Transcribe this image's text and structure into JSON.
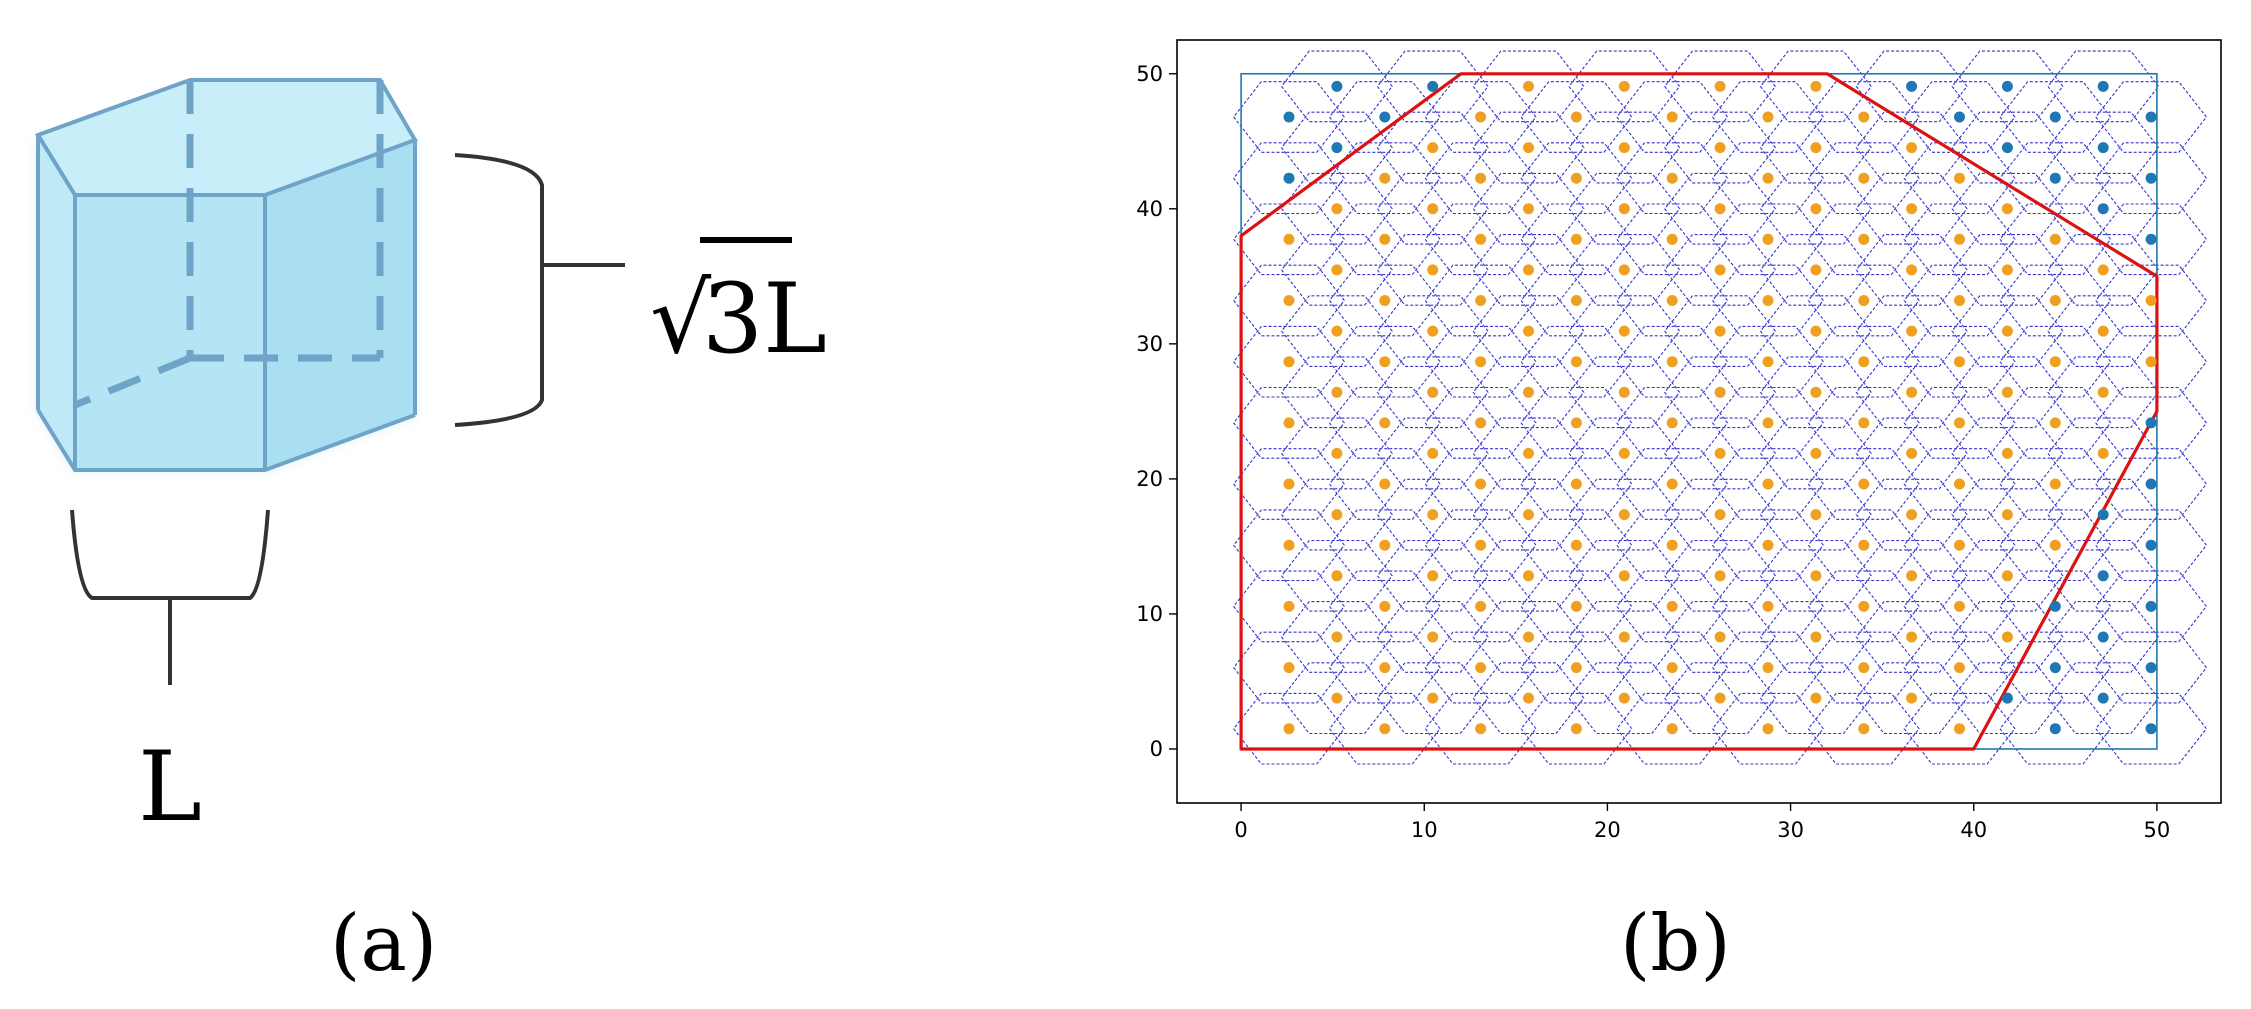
{
  "panel_a": {
    "height_label_root": "√",
    "height_label_num": "3L",
    "side_label": "L",
    "colors": {
      "fill": "#bfe9f7",
      "edge": "#6fa3c8",
      "bracket": "#333333"
    },
    "caption": "(a)"
  },
  "panel_b": {
    "caption": "(b)",
    "chart_data": {
      "type": "scatter",
      "title": "",
      "xlabel": "",
      "ylabel": "",
      "xlim": [
        -3.5,
        53.5
      ],
      "ylim": [
        -4,
        52.5
      ],
      "xticks": [
        0,
        10,
        20,
        30,
        40,
        50
      ],
      "yticks": [
        0,
        10,
        20,
        30,
        40,
        50
      ],
      "grid": false,
      "domain_rect": {
        "x": [
          0,
          50
        ],
        "y": [
          0,
          50
        ],
        "color": "#1f77b4"
      },
      "hex_grid": {
        "hex_radius": 3.02,
        "col_spacing": 2.615,
        "row_spacing": 4.53,
        "x0": 2.615,
        "y0": 1.5,
        "columns": 19,
        "rows": 11,
        "color": "#3333cc"
      },
      "boundary_polygon": {
        "color": "#dd1111",
        "points": [
          [
            0,
            38
          ],
          [
            12,
            50
          ],
          [
            32,
            50
          ],
          [
            50,
            35
          ],
          [
            50,
            25
          ],
          [
            40,
            0
          ],
          [
            0,
            0
          ]
        ]
      },
      "series": [
        {
          "color": "#f0a020",
          "rule": "points inside boundary polygon"
        },
        {
          "color": "#1f77b4",
          "rule": "points outside boundary polygon"
        }
      ]
    }
  }
}
